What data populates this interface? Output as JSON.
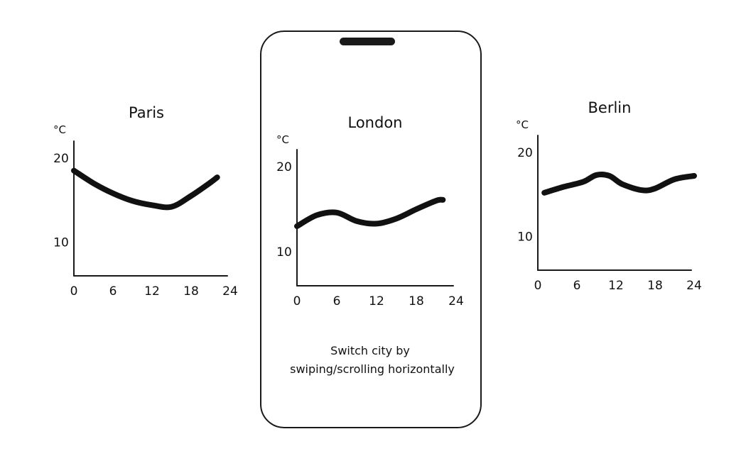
{
  "phone": {
    "caption_line1": "Switch city by",
    "caption_line2": "swiping/scrolling horizontally"
  },
  "chart_data": [
    {
      "type": "line",
      "title": "Paris",
      "ylabel": "°C",
      "xticks": [
        "0",
        "6",
        "12",
        "18",
        "24"
      ],
      "yticks": [
        "10",
        "20"
      ],
      "xlim": [
        0,
        24
      ],
      "ylim": [
        6,
        22
      ],
      "x": [
        0,
        3,
        6,
        9,
        12,
        15,
        18,
        21,
        22
      ],
      "y": [
        18.5,
        17.0,
        15.8,
        14.9,
        14.4,
        14.2,
        15.5,
        17.1,
        17.7
      ]
    },
    {
      "type": "line",
      "title": "London",
      "ylabel": "°C",
      "xticks": [
        "0",
        "6",
        "12",
        "18",
        "24"
      ],
      "yticks": [
        "10",
        "20"
      ],
      "xlim": [
        0,
        24
      ],
      "ylim": [
        6,
        22
      ],
      "x": [
        0,
        3,
        6,
        9,
        12,
        15,
        18,
        21,
        22
      ],
      "y": [
        13.0,
        14.3,
        14.6,
        13.6,
        13.3,
        13.9,
        15.0,
        16.0,
        16.1
      ]
    },
    {
      "type": "line",
      "title": "Berlin",
      "ylabel": "°C",
      "xticks": [
        "0",
        "6",
        "12",
        "18",
        "24"
      ],
      "yticks": [
        "10",
        "20"
      ],
      "xlim": [
        0,
        24
      ],
      "ylim": [
        6,
        22
      ],
      "x": [
        1,
        4,
        7,
        9,
        11,
        13,
        16,
        18,
        21,
        24
      ],
      "y": [
        15.2,
        15.9,
        16.5,
        17.3,
        17.2,
        16.2,
        15.5,
        15.7,
        16.8,
        17.2
      ]
    }
  ]
}
